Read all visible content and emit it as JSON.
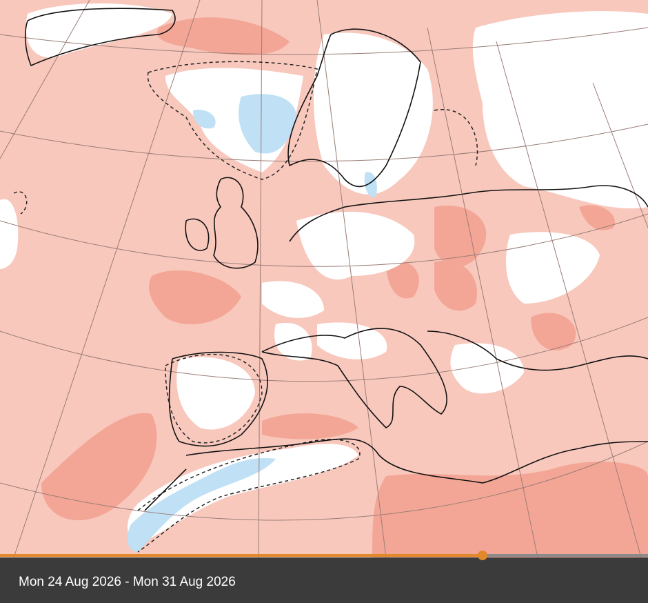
{
  "caption": {
    "date_range": "Mon 24 Aug 2026 - Mon 31 Aug 2026"
  }
}
